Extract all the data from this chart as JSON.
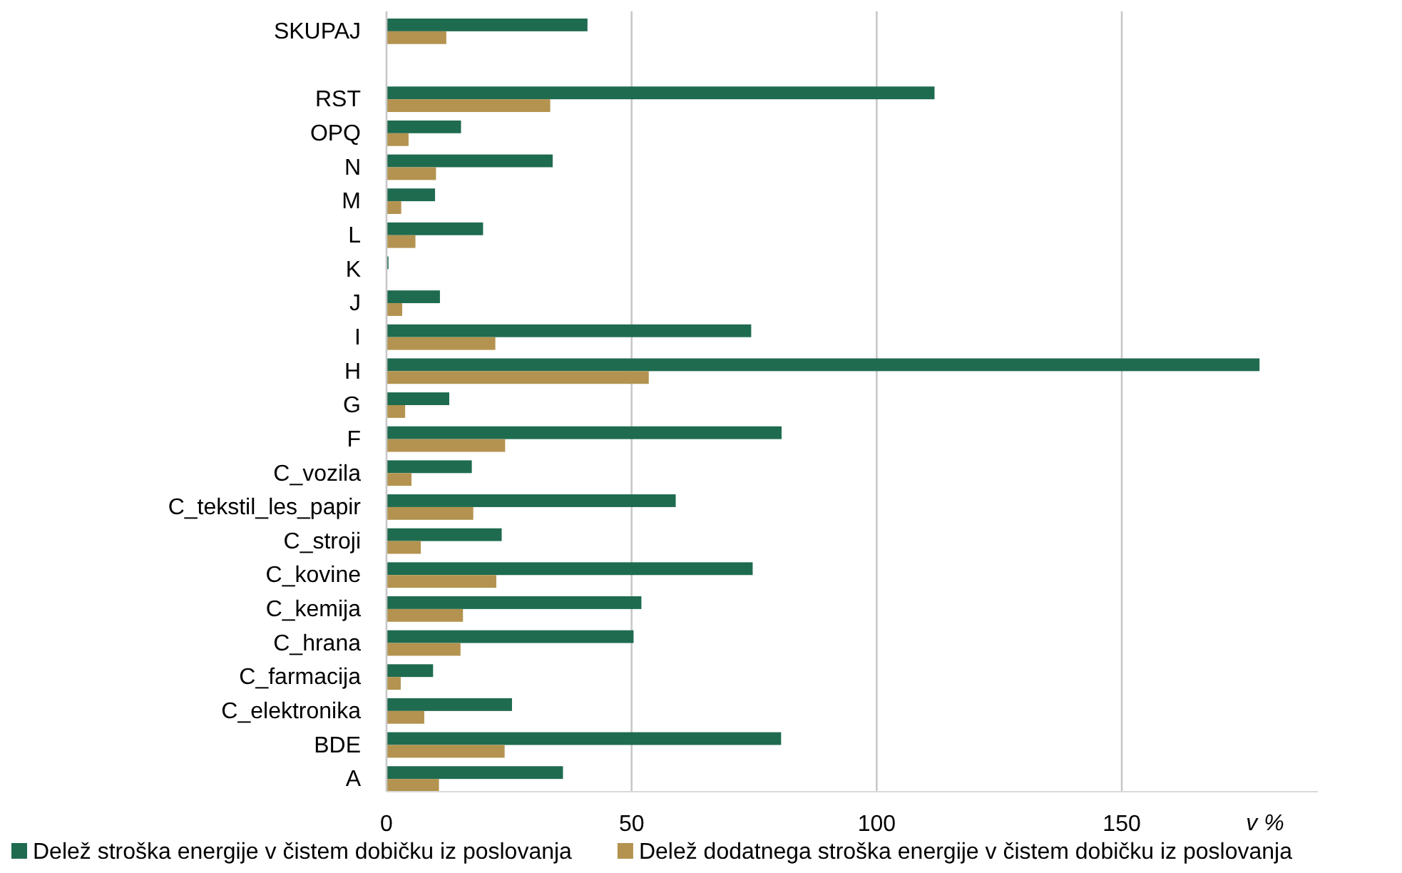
{
  "chart_data": {
    "type": "bar",
    "orientation": "horizontal",
    "categories": [
      "SKUPAJ",
      null,
      "RST",
      "OPQ",
      "N",
      "M",
      "L",
      "K",
      "J",
      "I",
      "H",
      "G",
      "F",
      "C_vozila",
      "C_tekstil_les_papir",
      "C_stroji",
      "C_kovine",
      "C_kemija",
      "C_hrana",
      "C_farmacija",
      "C_elektronika",
      "BDE",
      "A"
    ],
    "series": [
      {
        "name": "Delež stroška energije v čistem dobičku iz poslovanja",
        "color": "#1f6b4f",
        "values": [
          41.0,
          null,
          111.8,
          15.2,
          33.9,
          9.9,
          19.7,
          0.4,
          10.9,
          74.4,
          178.1,
          12.8,
          80.6,
          17.4,
          59.0,
          23.5,
          74.7,
          52.0,
          50.4,
          9.5,
          25.6,
          80.5,
          36.0
        ]
      },
      {
        "name": "Delež dodatnega stroška energije v čistem dobičku iz poslovanja",
        "color": "#b3934f",
        "values": [
          12.2,
          null,
          33.4,
          4.5,
          10.1,
          3.0,
          5.9,
          null,
          3.2,
          22.2,
          53.5,
          3.8,
          24.2,
          5.1,
          17.7,
          7.0,
          22.4,
          15.6,
          15.1,
          2.9,
          7.7,
          24.1,
          10.7
        ]
      }
    ],
    "xlim": [
      0,
      190
    ],
    "xticks": [
      0,
      50,
      100,
      150
    ],
    "annotations": [
      "v %"
    ],
    "grid": "x",
    "legend": "bottom"
  }
}
